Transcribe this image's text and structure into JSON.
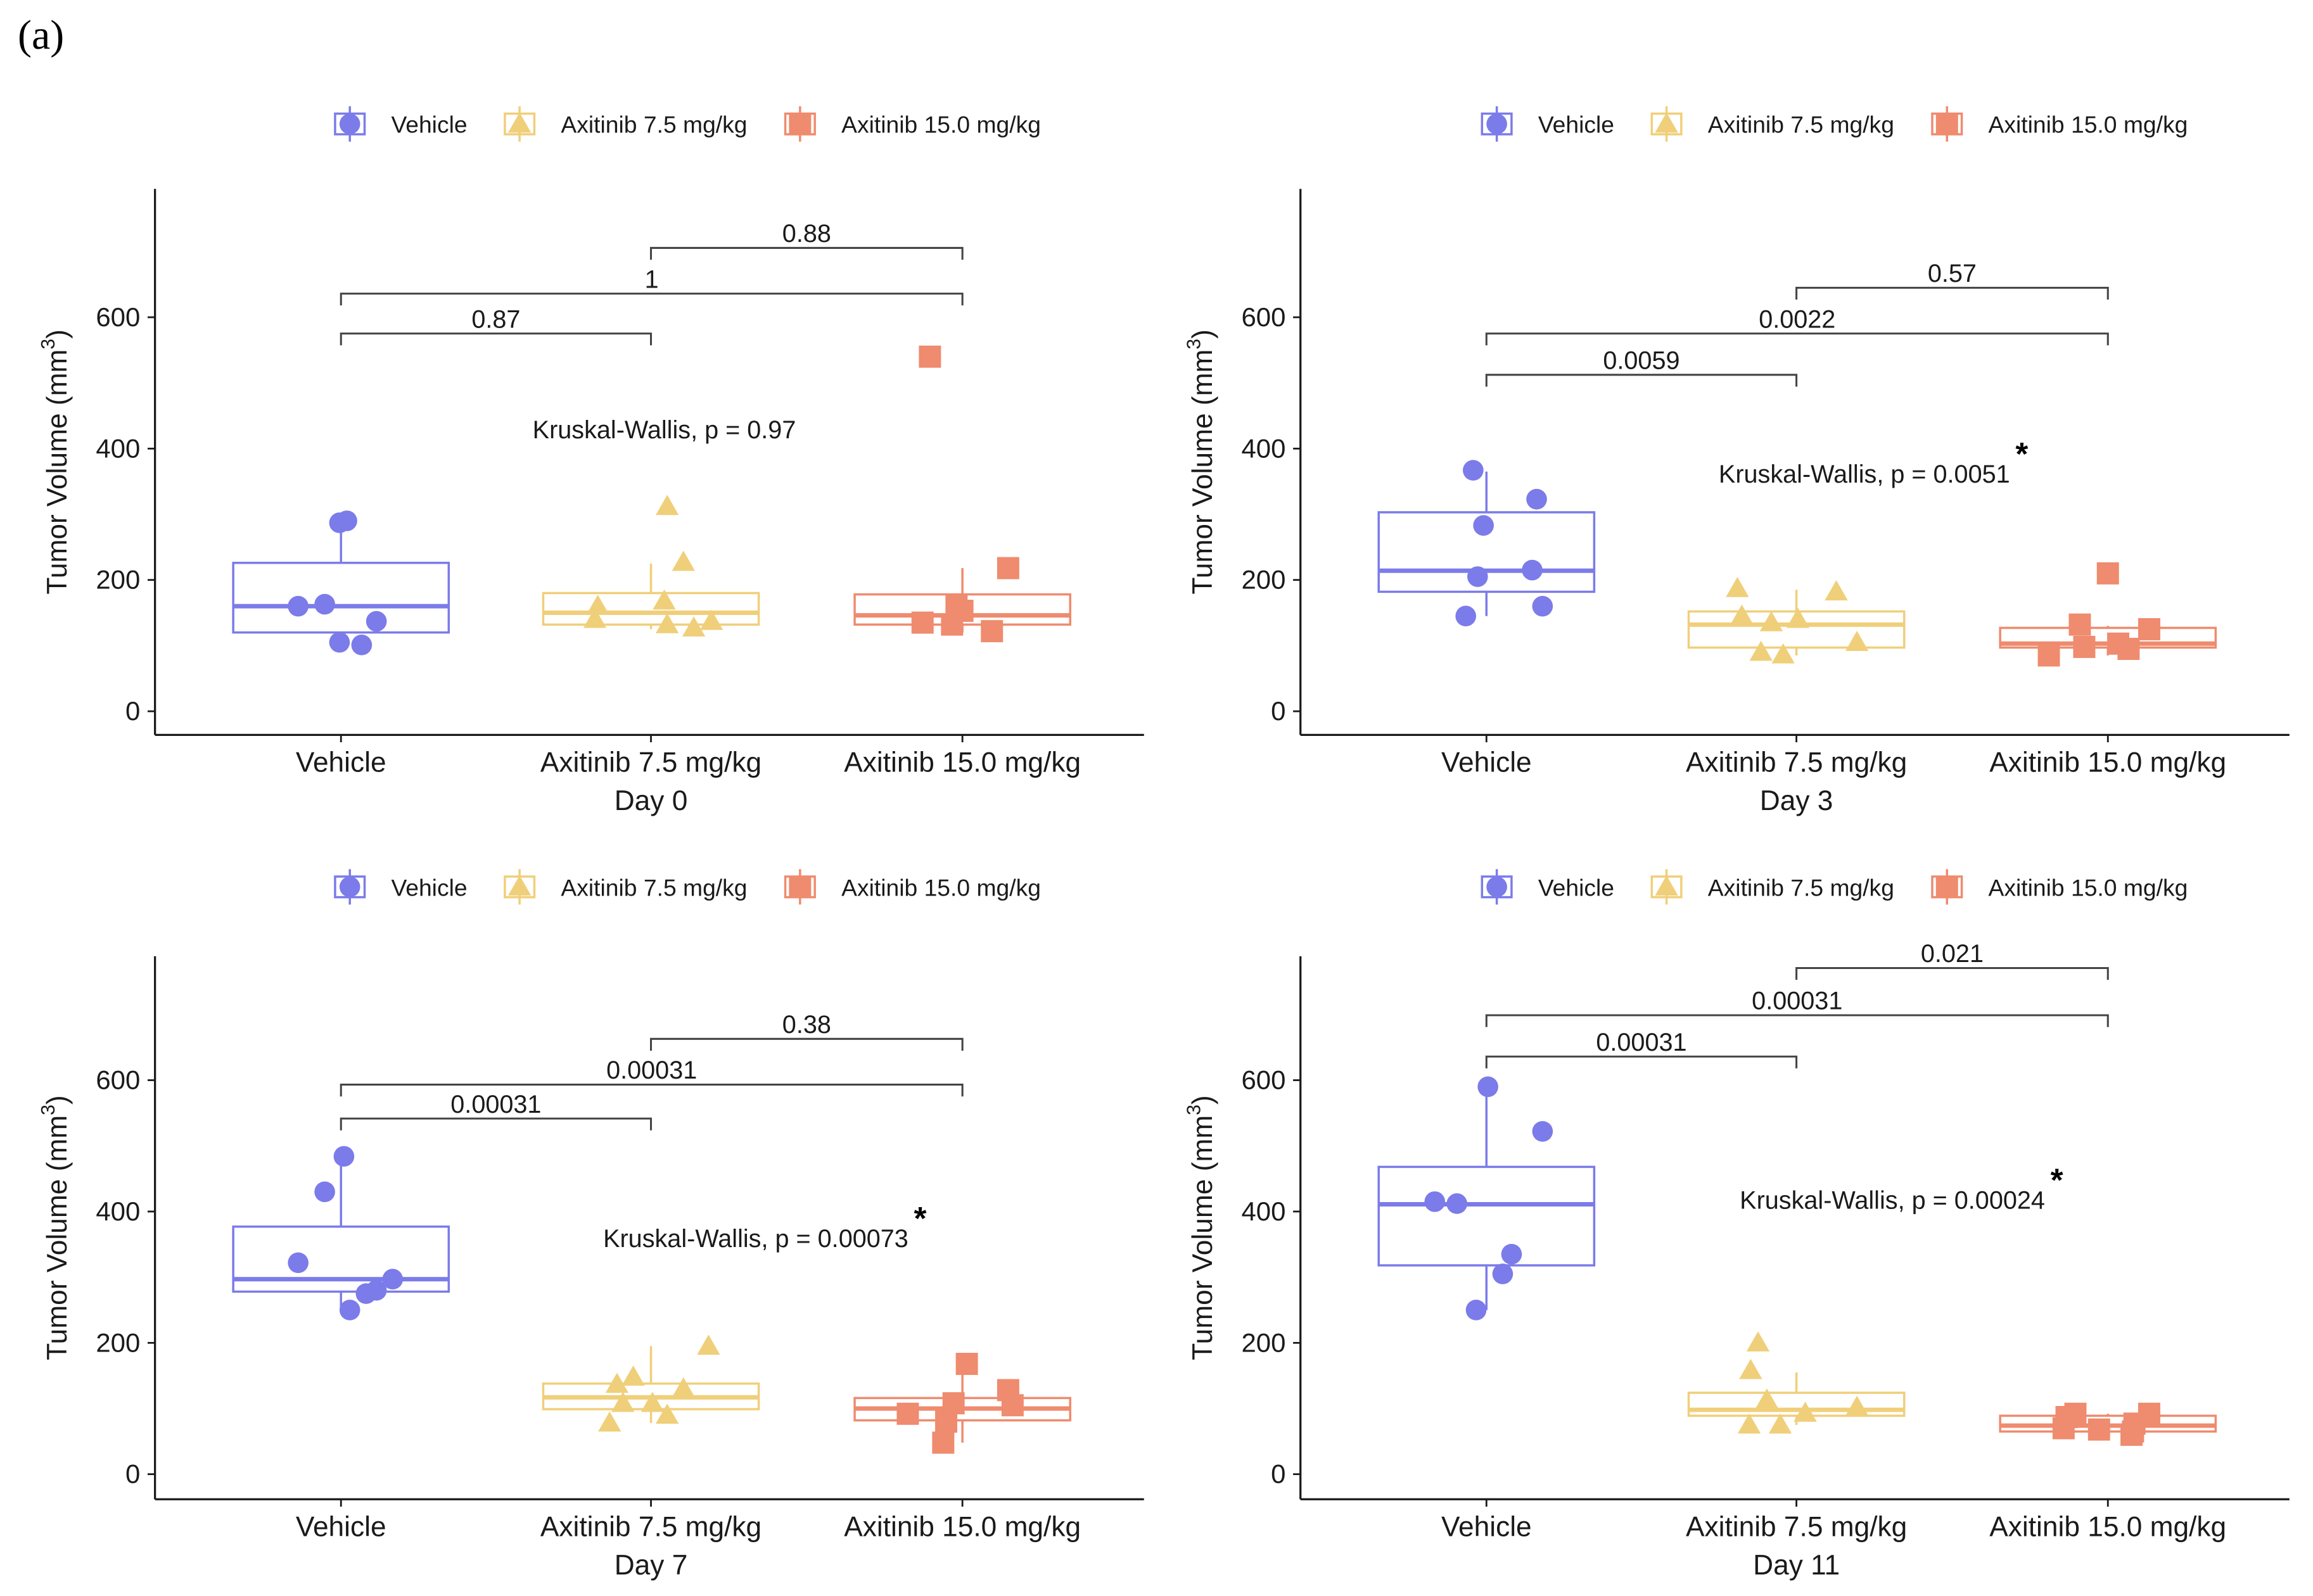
{
  "figure": {
    "label": "(a)",
    "colors": {
      "vehicle": "#7b7bea",
      "axitinib_7_5": "#f0cf7a",
      "axitinib_15_0": "#ef8b6e",
      "axis": "#1a1a1a",
      "bracket": "#444444"
    },
    "y_label_main": "Tumor Volume (mm",
    "y_label_sup": "3",
    "y_label_close": ")",
    "legend": [
      "Vehicle",
      "Axitinib 7.5 mg/kg",
      "Axitinib 15.0 mg/kg"
    ]
  },
  "chart_data": [
    {
      "type": "box",
      "title": "Day 0",
      "xlabel": "Day 0",
      "ylabel": "Tumor Volume (mm3)",
      "ylim": [
        -20,
        760
      ],
      "yticks": [
        0,
        200,
        400,
        600
      ],
      "categories": [
        "Vehicle",
        "Axitinib 7.5 mg/kg",
        "Axitinib 15.0 mg/kg"
      ],
      "boxes": [
        {
          "q1": 120,
          "median": 160,
          "q3": 226,
          "whisker_low": 100,
          "whisker_high": 290
        },
        {
          "q1": 132,
          "median": 150,
          "q3": 180,
          "whisker_low": 125,
          "whisker_high": 225
        },
        {
          "q1": 132,
          "median": 146,
          "q3": 178,
          "whisker_low": 120,
          "whisker_high": 218
        }
      ],
      "points": [
        [
          [
            230,
            287
          ],
          [
            235,
            290
          ],
          [
            202,
            160
          ],
          [
            220,
            163
          ],
          [
            255,
            137
          ],
          [
            230,
            105
          ],
          [
            245,
            101
          ]
        ],
        [
          [
            452,
            312
          ],
          [
            463,
            227
          ],
          [
            450,
            168
          ],
          [
            405,
            160
          ],
          [
            403,
            140
          ],
          [
            452,
            132
          ],
          [
            470,
            127
          ],
          [
            482,
            137
          ]
        ],
        [
          [
            630,
            540
          ],
          [
            683,
            218
          ],
          [
            648,
            160
          ],
          [
            652,
            153
          ],
          [
            625,
            135
          ],
          [
            645,
            132
          ],
          [
            672,
            122
          ]
        ]
      ],
      "test_text": "Kruskal-Wallis, p = 0.97",
      "significant": false,
      "comparisons": [
        {
          "from": 1,
          "to": 2,
          "label": "0.88",
          "level": 2
        },
        {
          "from": 0,
          "to": 2,
          "label": "1",
          "level": 1
        },
        {
          "from": 0,
          "to": 1,
          "label": "0.87",
          "level": 0
        }
      ]
    },
    {
      "type": "box",
      "title": "Day 3",
      "xlabel": "Day 3",
      "ylabel": "Tumor Volume (mm3)",
      "ylim": [
        -20,
        760
      ],
      "yticks": [
        0,
        200,
        400,
        600
      ],
      "categories": [
        "Vehicle",
        "Axitinib 7.5 mg/kg",
        "Axitinib 15.0 mg/kg"
      ],
      "boxes": [
        {
          "q1": 182,
          "median": 214,
          "q3": 303,
          "whisker_low": 145,
          "whisker_high": 365
        },
        {
          "q1": 97,
          "median": 132,
          "q3": 152,
          "whisker_low": 85,
          "whisker_high": 185
        },
        {
          "q1": 97,
          "median": 103,
          "q3": 127,
          "whisker_low": 85,
          "whisker_high": 130
        }
      ],
      "points": [
        [
          [
            998,
            367
          ],
          [
            1005,
            283
          ],
          [
            1041,
            323
          ],
          [
            1038,
            215
          ],
          [
            1001,
            205
          ],
          [
            1045,
            160
          ],
          [
            993,
            145
          ]
        ],
        [
          [
            1177,
            187
          ],
          [
            1244,
            182
          ],
          [
            1180,
            145
          ],
          [
            1200,
            135
          ],
          [
            1218,
            140
          ],
          [
            1258,
            105
          ],
          [
            1193,
            90
          ],
          [
            1208,
            86
          ]
        ],
        [
          [
            1428,
            210
          ],
          [
            1409,
            132
          ],
          [
            1456,
            125
          ],
          [
            1435,
            103
          ],
          [
            1412,
            98
          ],
          [
            1442,
            95
          ],
          [
            1388,
            85
          ]
        ]
      ],
      "test_text": "Kruskal-Wallis, p = 0.0051",
      "significant": true,
      "comparisons": [
        {
          "from": 1,
          "to": 2,
          "label": "0.57",
          "level": 2
        },
        {
          "from": 0,
          "to": 2,
          "label": "0.0022",
          "level": 1
        },
        {
          "from": 0,
          "to": 1,
          "label": "0.0059",
          "level": 0
        }
      ]
    },
    {
      "type": "box",
      "title": "Day 7",
      "xlabel": "Day 7",
      "ylabel": "Tumor Volume (mm3)",
      "ylim": [
        -20,
        760
      ],
      "yticks": [
        0,
        200,
        400,
        600
      ],
      "categories": [
        "Vehicle",
        "Axitinib 7.5 mg/kg",
        "Axitinib 15.0 mg/kg"
      ],
      "boxes": [
        {
          "q1": 278,
          "median": 297,
          "q3": 377,
          "whisker_low": 250,
          "whisker_high": 484
        },
        {
          "q1": 99,
          "median": 117,
          "q3": 138,
          "whisker_low": 78,
          "whisker_high": 195
        },
        {
          "q1": 82,
          "median": 100,
          "q3": 116,
          "whisker_low": 48,
          "whisker_high": 168
        }
      ],
      "points": [
        [
          [
            233,
            484
          ],
          [
            220,
            430
          ],
          [
            202,
            322
          ],
          [
            266,
            297
          ],
          [
            255,
            280
          ],
          [
            248,
            275
          ],
          [
            237,
            250
          ]
        ],
        [
          [
            480,
            195
          ],
          [
            429,
            148
          ],
          [
            418,
            137
          ],
          [
            463,
            130
          ],
          [
            442,
            108
          ],
          [
            422,
            108
          ],
          [
            452,
            90
          ],
          [
            413,
            78
          ]
        ],
        [
          [
            655,
            168
          ],
          [
            683,
            128
          ],
          [
            646,
            108
          ],
          [
            686,
            105
          ],
          [
            615,
            92
          ],
          [
            641,
            80
          ],
          [
            639,
            48
          ]
        ]
      ],
      "test_text": "Kruskal-Wallis, p = 0.00073",
      "significant": true,
      "comparisons": [
        {
          "from": 1,
          "to": 2,
          "label": "0.38",
          "level": 2
        },
        {
          "from": 0,
          "to": 2,
          "label": "0.00031",
          "level": 1
        },
        {
          "from": 0,
          "to": 1,
          "label": "0.00031",
          "level": 0
        }
      ]
    },
    {
      "type": "box",
      "title": "Day 11",
      "xlabel": "Day 11",
      "ylabel": "Tumor Volume (mm3)",
      "ylim": [
        -20,
        760
      ],
      "yticks": [
        0,
        200,
        400,
        600
      ],
      "categories": [
        "Vehicle",
        "Axitinib 7.5 mg/kg",
        "Axitinib 15.0 mg/kg"
      ],
      "boxes": [
        {
          "q1": 318,
          "median": 411,
          "q3": 468,
          "whisker_low": 250,
          "whisker_high": 590
        },
        {
          "q1": 89,
          "median": 98,
          "q3": 124,
          "whisker_low": 75,
          "whisker_high": 155
        },
        {
          "q1": 65,
          "median": 74,
          "q3": 89,
          "whisker_low": 58,
          "whisker_high": 92
        }
      ],
      "points": [
        [
          [
            1008,
            590
          ],
          [
            1045,
            522
          ],
          [
            972,
            415
          ],
          [
            987,
            412
          ],
          [
            1024,
            335
          ],
          [
            1018,
            305
          ],
          [
            1000,
            250
          ]
        ],
        [
          [
            1191,
            200
          ],
          [
            1186,
            158
          ],
          [
            1197,
            113
          ],
          [
            1258,
            102
          ],
          [
            1223,
            93
          ],
          [
            1185,
            75
          ],
          [
            1206,
            75
          ]
        ],
        [
          [
            1406,
            92
          ],
          [
            1456,
            92
          ],
          [
            1400,
            87
          ],
          [
            1446,
            77
          ],
          [
            1422,
            68
          ],
          [
            1445,
            65
          ],
          [
            1398,
            70
          ],
          [
            1444,
            60
          ]
        ]
      ],
      "test_text": "Kruskal-Wallis, p = 0.00024",
      "significant": true,
      "comparisons": [
        {
          "from": 1,
          "to": 2,
          "label": "0.021",
          "level": 2
        },
        {
          "from": 0,
          "to": 2,
          "label": "0.00031",
          "level": 1
        },
        {
          "from": 0,
          "to": 1,
          "label": "0.00031",
          "level": 0
        }
      ]
    }
  ]
}
